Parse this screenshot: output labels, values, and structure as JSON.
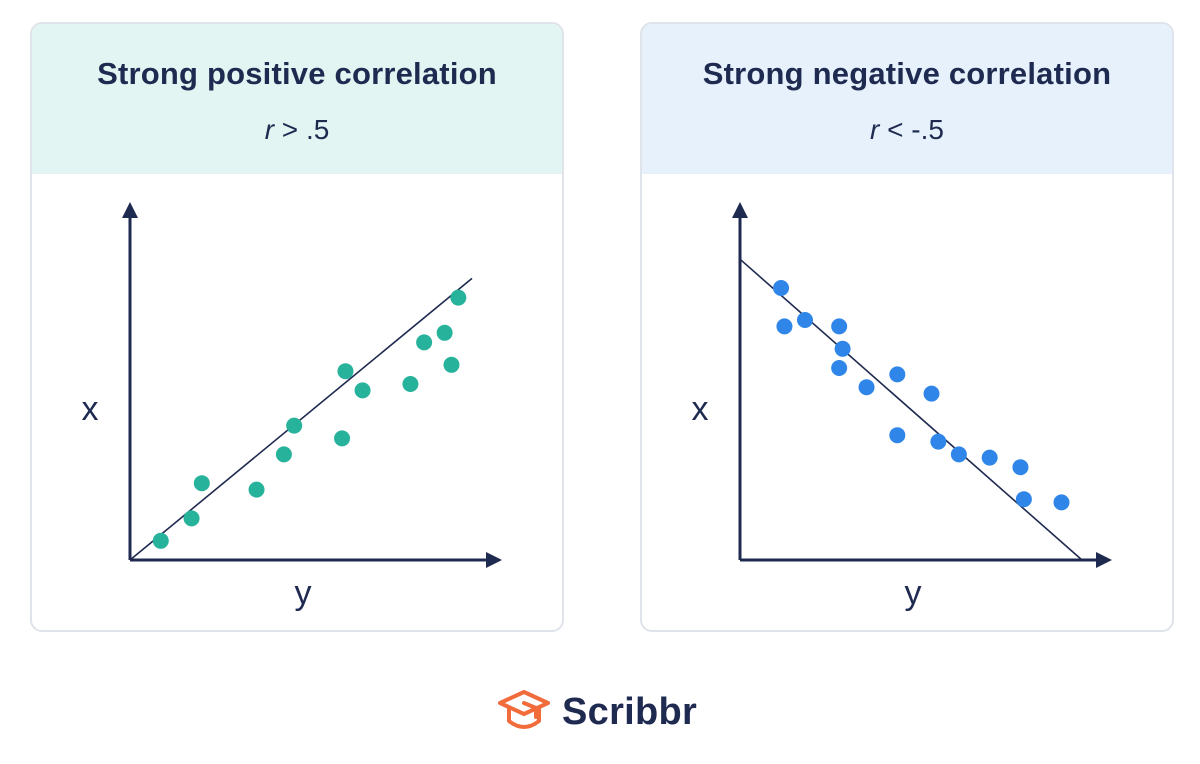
{
  "brand": {
    "name": "Scribbr",
    "logo_icon": "graduation-cap-icon",
    "logo_color": "#f26b3a"
  },
  "chart_data": [
    {
      "type": "scatter",
      "title": "Strong positive correlation",
      "subtitle": {
        "var": "r",
        "rest": " > .5"
      },
      "xlabel": "y",
      "ylabel": "x",
      "color": "#27b39b",
      "x": [
        0.09,
        0.18,
        0.21,
        0.37,
        0.45,
        0.48,
        0.62,
        0.63,
        0.68,
        0.82,
        0.86,
        0.92,
        0.94,
        0.96
      ],
      "y": [
        0.06,
        0.13,
        0.24,
        0.22,
        0.33,
        0.42,
        0.38,
        0.59,
        0.53,
        0.55,
        0.68,
        0.71,
        0.61,
        0.82
      ],
      "trendline": [
        [
          0,
          0
        ],
        [
          1,
          0.88
        ]
      ],
      "xlim": [
        0,
        1
      ],
      "ylim": [
        0,
        1
      ]
    },
    {
      "type": "scatter",
      "title": "Strong negative correlation",
      "subtitle": {
        "var": "r",
        "rest": " < -.5"
      },
      "xlabel": "y",
      "ylabel": "x",
      "color": "#2f86e8",
      "x": [
        0.12,
        0.19,
        0.13,
        0.29,
        0.3,
        0.29,
        0.37,
        0.46,
        0.56,
        0.46,
        0.58,
        0.64,
        0.73,
        0.83,
        0.82,
        0.94
      ],
      "y": [
        0.85,
        0.75,
        0.73,
        0.73,
        0.66,
        0.6,
        0.54,
        0.58,
        0.52,
        0.39,
        0.37,
        0.33,
        0.32,
        0.19,
        0.29,
        0.18
      ],
      "trendline": [
        [
          0,
          0.94
        ],
        [
          1,
          0
        ]
      ],
      "xlim": [
        0,
        1
      ],
      "ylim": [
        0,
        1
      ]
    }
  ]
}
